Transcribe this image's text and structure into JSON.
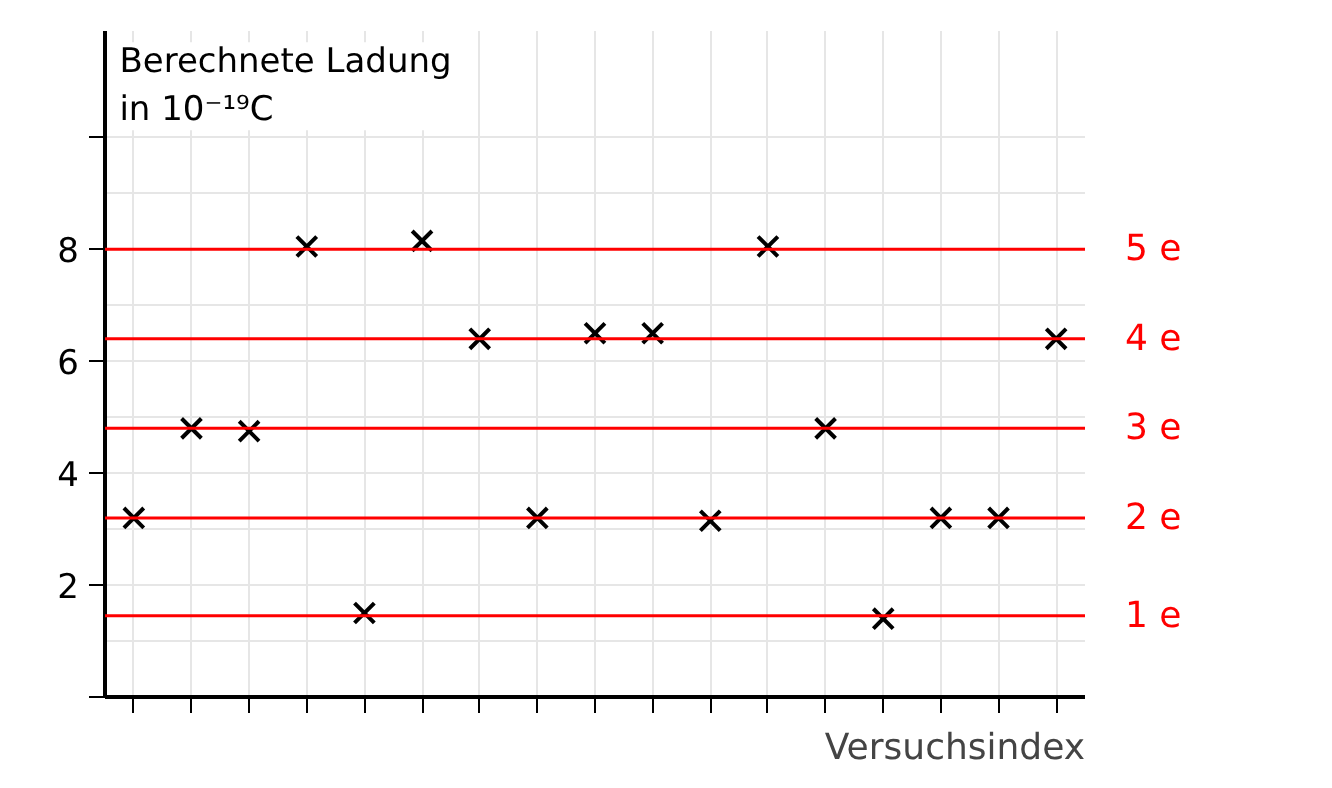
{
  "chart_data": {
    "type": "scatter",
    "ylabel": "Berechnete Ladung\nin 10⁻¹⁹C",
    "xlabel": "Versuchsindex",
    "categories": [
      null,
      null,
      null,
      null,
      null,
      null,
      null,
      null,
      null,
      null,
      null,
      null,
      null,
      null,
      null,
      null,
      null
    ],
    "values": [
      3.2,
      4.8,
      4.75,
      8.05,
      1.5,
      8.15,
      6.4,
      3.2,
      6.5,
      6.5,
      3.15,
      8.05,
      4.8,
      1.4,
      3.2,
      3.2,
      6.4
    ],
    "color": "#000000",
    "marker": "cross",
    "ylim": [
      0,
      11.9
    ],
    "yticks": [
      {
        "value": 0,
        "label": null
      },
      2,
      4,
      6,
      8,
      {
        "value": 10,
        "label": null
      }
    ],
    "grid": true,
    "tick_labels": "y",
    "ref_lines": [
      {
        "axis": "y",
        "value": 1.45,
        "label": "1 e",
        "color": "#ff0000"
      },
      {
        "axis": "y",
        "value": 3.2,
        "label": "2 e",
        "color": "#ff0000"
      },
      {
        "axis": "y",
        "value": 4.8,
        "label": "3 e",
        "color": "#ff0000"
      },
      {
        "axis": "y",
        "value": 6.4,
        "label": "4 e",
        "color": "#ff0000"
      },
      {
        "axis": "y",
        "value": 8.0,
        "label": "5 e",
        "color": "#ff0000"
      }
    ]
  }
}
